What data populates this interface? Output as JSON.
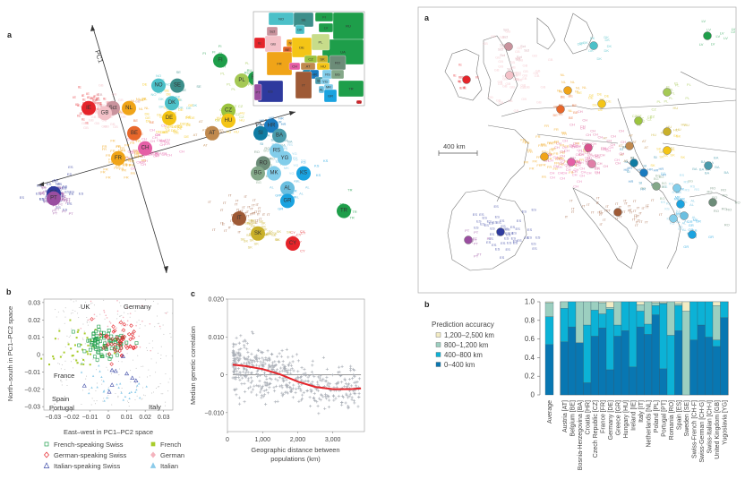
{
  "panel_labels": {
    "pca": "a",
    "map": "a",
    "swiss": "b",
    "corr": "c",
    "accuracy": "b"
  },
  "chart_data": [
    {
      "id": "pca",
      "type": "scatter",
      "title": "",
      "axes": {
        "pc1_label": "PC1",
        "pc2_label": "PC2"
      },
      "centers": [
        {
          "code": "LV",
          "x": 0.55,
          "y": 0.9,
          "color": "#1e9e4a"
        },
        {
          "code": "FI",
          "x": 0.37,
          "y": 0.83,
          "color": "#1e9e4a"
        },
        {
          "code": "RU",
          "x": 0.5,
          "y": 0.76,
          "color": "#1e9e4a"
        },
        {
          "code": "PL",
          "x": 0.45,
          "y": 0.75,
          "color": "#a5c955"
        },
        {
          "code": "UA",
          "x": 0.63,
          "y": 0.71,
          "color": "#1e9e4a"
        },
        {
          "code": "NO",
          "x": 0.14,
          "y": 0.73,
          "color": "#4cc0c8"
        },
        {
          "code": "SE",
          "x": 0.21,
          "y": 0.73,
          "color": "#3c8e8a"
        },
        {
          "code": "DK",
          "x": 0.19,
          "y": 0.66,
          "color": "#4cc0c8"
        },
        {
          "code": "IE",
          "x": -0.12,
          "y": 0.64,
          "color": "#e5242a"
        },
        {
          "code": "Sct",
          "x": -0.03,
          "y": 0.64,
          "color": "#c9939d"
        },
        {
          "code": "GB",
          "x": -0.06,
          "y": 0.62,
          "color": "#f4c1c8"
        },
        {
          "code": "NL",
          "x": 0.03,
          "y": 0.64,
          "color": "#f0a418"
        },
        {
          "code": "DE",
          "x": 0.18,
          "y": 0.6,
          "color": "#f4c516"
        },
        {
          "code": "CZ",
          "x": 0.4,
          "y": 0.63,
          "color": "#9cc43f"
        },
        {
          "code": "HU",
          "x": 0.4,
          "y": 0.59,
          "color": "#f4c516"
        },
        {
          "code": "AT",
          "x": 0.34,
          "y": 0.54,
          "color": "#c0894e"
        },
        {
          "code": "BE",
          "x": 0.05,
          "y": 0.54,
          "color": "#e8672a"
        },
        {
          "code": "CH",
          "x": 0.09,
          "y": 0.48,
          "color": "#e55fa6"
        },
        {
          "code": "FR",
          "x": -0.01,
          "y": 0.44,
          "color": "#f0a418"
        },
        {
          "code": "HR",
          "x": 0.56,
          "y": 0.57,
          "color": "#1a7bbf"
        },
        {
          "code": "SI",
          "x": 0.52,
          "y": 0.54,
          "color": "#0f7ca3"
        },
        {
          "code": "BA",
          "x": 0.59,
          "y": 0.53,
          "color": "#4a9bab"
        },
        {
          "code": "RS",
          "x": 0.58,
          "y": 0.47,
          "color": "#82cdea"
        },
        {
          "code": "YG",
          "x": 0.61,
          "y": 0.44,
          "color": "#82cdea"
        },
        {
          "code": "RO",
          "x": 0.53,
          "y": 0.42,
          "color": "#6c8c78"
        },
        {
          "code": "BG",
          "x": 0.51,
          "y": 0.38,
          "color": "#84a889"
        },
        {
          "code": "MK",
          "x": 0.57,
          "y": 0.38,
          "color": "#82cdea"
        },
        {
          "code": "KS",
          "x": 0.68,
          "y": 0.38,
          "color": "#1aa3e0"
        },
        {
          "code": "AL",
          "x": 0.62,
          "y": 0.32,
          "color": "#6bbfe0"
        },
        {
          "code": "GR",
          "x": 0.62,
          "y": 0.27,
          "color": "#1aa3e0"
        },
        {
          "code": "TR",
          "x": 0.83,
          "y": 0.23,
          "color": "#1e9e4a"
        },
        {
          "code": "ES",
          "x": -0.25,
          "y": 0.3,
          "color": "#2e3a9e"
        },
        {
          "code": "PT",
          "x": -0.25,
          "y": 0.28,
          "color": "#9a4ea0"
        },
        {
          "code": "IT",
          "x": 0.44,
          "y": 0.2,
          "color": "#9e5a36"
        },
        {
          "code": "SK",
          "x": 0.51,
          "y": 0.14,
          "color": "#c9b02a"
        },
        {
          "code": "CY",
          "x": 0.64,
          "y": 0.1,
          "color": "#e5242a"
        }
      ]
    },
    {
      "id": "swiss",
      "type": "scatter",
      "xlabel": "East–west in PC1–PC2 space",
      "ylabel": "North–south in PC1–PC2 space",
      "xlim": [
        -0.035,
        0.035
      ],
      "ylim": [
        -0.032,
        0.032
      ],
      "xticks": [
        "-0.03",
        "-0.02",
        "-0.01",
        "0",
        "0.01",
        "0.02",
        "0.03"
      ],
      "yticks": [
        "0.03",
        "0.02",
        "0.01",
        "0",
        "-0.01",
        "-0.02",
        "-0.03"
      ],
      "annotations": [
        "UK",
        "Germany",
        "France",
        "Spain",
        "Portugal",
        "Italy"
      ],
      "legend": [
        {
          "label": "French-speaking Swiss",
          "marker": "square-open",
          "color": "#1e9e4a"
        },
        {
          "label": "French",
          "marker": "square",
          "color": "#a8cc2a"
        },
        {
          "label": "German-speaking Swiss",
          "marker": "diamond-open",
          "color": "#e5242a"
        },
        {
          "label": "German",
          "marker": "diamond",
          "color": "#f4b4be"
        },
        {
          "label": "Italian-speaking Swiss",
          "marker": "triangle-open",
          "color": "#3c4aa6"
        },
        {
          "label": "Italian",
          "marker": "triangle",
          "color": "#8ccbea"
        }
      ]
    },
    {
      "id": "corr",
      "type": "scatter",
      "xlabel": "Geographic distance between populations (km)",
      "ylabel": "Median genetic correlation",
      "xlim": [
        0,
        3900
      ],
      "ylim": [
        -0.015,
        0.02
      ],
      "xticks": [
        "0",
        "1,000",
        "2,000",
        "3,000"
      ],
      "yticks": [
        "0.020",
        "0.010",
        "0",
        "-0.010"
      ],
      "fit_line": {
        "x": [
          150,
          500,
          1000,
          1500,
          2000,
          2500,
          3000,
          3500,
          3800
        ],
        "y": [
          0.0027,
          0.0023,
          0.0015,
          0.0001,
          -0.0018,
          -0.0032,
          -0.0038,
          -0.0038,
          -0.0036
        ],
        "color": "#e5242a"
      }
    },
    {
      "id": "accuracy",
      "type": "bar",
      "title": "Prediction accuracy",
      "ylim": [
        0,
        1.0
      ],
      "yticks": [
        "1.0",
        "0.8",
        "0.6",
        "0.4",
        "0.2",
        "0"
      ],
      "legend": [
        {
          "label": "1,200–2,500 km",
          "color": "#f3ecc4"
        },
        {
          "label": "800–1,200 km",
          "color": "#9ccfc0"
        },
        {
          "label": "400–800 km",
          "color": "#0cb2d6"
        },
        {
          "label": "0–400 km",
          "color": "#0877b2"
        }
      ],
      "average": {
        "label": "Average",
        "values": [
          0.54,
          0.3,
          0.15,
          0.01
        ]
      },
      "categories": [
        "Austria [AT]",
        "Belgium [BE]",
        "Bosnia-Herzegovina [BA]",
        "Croatia [HR]",
        "Czech Republic [CZ]",
        "France [FR]",
        "Germany [DE]",
        "Greece [GR]",
        "Hungary [HU]",
        "Ireland [IE]",
        "Italy [IT]",
        "Netherlands [NL]",
        "Poland [PL]",
        "Portugal [PT]",
        "Romania [RO]",
        "Spain [ES]",
        "Sweden [SE]",
        "Swiss-French [CH-F]",
        "Swiss-German [CH-G]",
        "Swiss-Italian [CH-I]",
        "United Kingdom [GB]",
        "Yugoslavia [YG]"
      ],
      "series": [
        {
          "name": "0–400 km",
          "values": [
            0.57,
            0.73,
            0.56,
            0.13,
            0.63,
            0.72,
            0.27,
            0.63,
            0.69,
            0.3,
            0.73,
            0.65,
            0.86,
            0.28,
            0.0,
            0.69,
            0.0,
            0.59,
            0.75,
            0.62,
            0.52,
            0.83
          ]
        },
        {
          "name": "400–800 km",
          "values": [
            0.36,
            0.27,
            0.0,
            0.62,
            0.28,
            0.15,
            0.65,
            0.12,
            0.31,
            0.7,
            0.17,
            0.11,
            0.1,
            0.7,
            0.64,
            0.27,
            0.0,
            0.41,
            0.25,
            0.38,
            0.07,
            0.17
          ]
        },
        {
          "name": "800–1,200 km",
          "values": [
            0.07,
            0.0,
            0.44,
            0.25,
            0.09,
            0.12,
            0.02,
            0.25,
            0.0,
            0.0,
            0.07,
            0.24,
            0.03,
            0.01,
            0.36,
            0.02,
            0.9,
            0.0,
            0.0,
            0.0,
            0.37,
            0.0
          ]
        },
        {
          "name": "1,200–2,500 km",
          "values": [
            0.0,
            0.0,
            0.0,
            0.0,
            0.0,
            0.01,
            0.06,
            0.0,
            0.0,
            0.0,
            0.03,
            0.0,
            0.01,
            0.01,
            0.0,
            0.02,
            0.1,
            0.0,
            0.0,
            0.0,
            0.04,
            0.0
          ]
        }
      ]
    }
  ],
  "map": {
    "scale_label": "400 km",
    "centers": [
      {
        "code": "IE",
        "color": "#e5242a"
      },
      {
        "code": "Sct",
        "color": "#c9939d"
      },
      {
        "code": "GB",
        "color": "#f4c1c8"
      },
      {
        "code": "DK",
        "color": "#4cc0c8"
      },
      {
        "code": "NL",
        "color": "#f0a418"
      },
      {
        "code": "BE",
        "color": "#e8672a"
      },
      {
        "code": "DE",
        "color": "#f4c516"
      },
      {
        "code": "LV",
        "color": "#1e9e4a"
      },
      {
        "code": "PL",
        "color": "#a5c955"
      },
      {
        "code": "CZ",
        "color": "#9cc43f"
      },
      {
        "code": "AT",
        "color": "#c0894e"
      },
      {
        "code": "HU",
        "color": "#c9b02a"
      },
      {
        "code": "SK",
        "color": "#f4c516"
      },
      {
        "code": "FR",
        "color": "#f0a418"
      },
      {
        "code": "CH-G",
        "color": "#d9528e"
      },
      {
        "code": "CH-F",
        "color": "#e55fa6"
      },
      {
        "code": "CH-I",
        "color": "#e07fa8"
      },
      {
        "code": "SI",
        "color": "#0f7ca3"
      },
      {
        "code": "HR",
        "color": "#1a7bbf"
      },
      {
        "code": "BA",
        "color": "#4a9bab"
      },
      {
        "code": "RS",
        "color": "#82cdea"
      },
      {
        "code": "RO",
        "color": "#6c8c78"
      },
      {
        "code": "BG",
        "color": "#84a889"
      },
      {
        "code": "MK",
        "color": "#1aa3e0"
      },
      {
        "code": "AL",
        "color": "#6bbfe0"
      },
      {
        "code": "KS",
        "color": "#82cdea"
      },
      {
        "code": "GR",
        "color": "#1aa3e0"
      },
      {
        "code": "IT",
        "color": "#9e5a36"
      },
      {
        "code": "ES",
        "color": "#2e3a9e"
      },
      {
        "code": "PT",
        "color": "#9a4ea0"
      }
    ]
  },
  "inset_map": {
    "labels": [
      "NO",
      "SE",
      "FI",
      "LV",
      "RU",
      "DK",
      "Sct",
      "GB",
      "IE",
      "NL",
      "BE",
      "DE",
      "PL",
      "UA",
      "CZ",
      "SK",
      "HU",
      "AT",
      "FR",
      "CH",
      "RO",
      "SI",
      "HR",
      "BA",
      "RS",
      "YG",
      "BG",
      "ES",
      "PT",
      "IT",
      "MK",
      "AL",
      "GR",
      "TR",
      "CY"
    ]
  }
}
